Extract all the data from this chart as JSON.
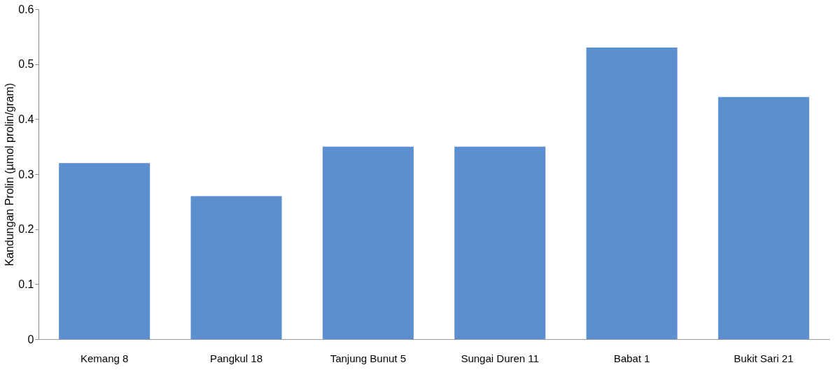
{
  "chart_data": {
    "type": "bar",
    "ylabel": "Kandungan Prolin (µmol prolin/gram)",
    "categories": [
      "Kemang 8",
      "Pangkul 18",
      "Tanjung Bunut 5",
      "Sungai Duren 11",
      "Babat 1",
      "Bukit Sari  21"
    ],
    "values": [
      0.32,
      0.26,
      0.35,
      0.35,
      0.53,
      0.44
    ],
    "color": "#5b8fcf",
    "ylim": [
      0,
      0.6
    ],
    "yticks": [
      0,
      0.1,
      0.2,
      0.3,
      0.4,
      0.5,
      0.6
    ],
    "grid": false
  }
}
